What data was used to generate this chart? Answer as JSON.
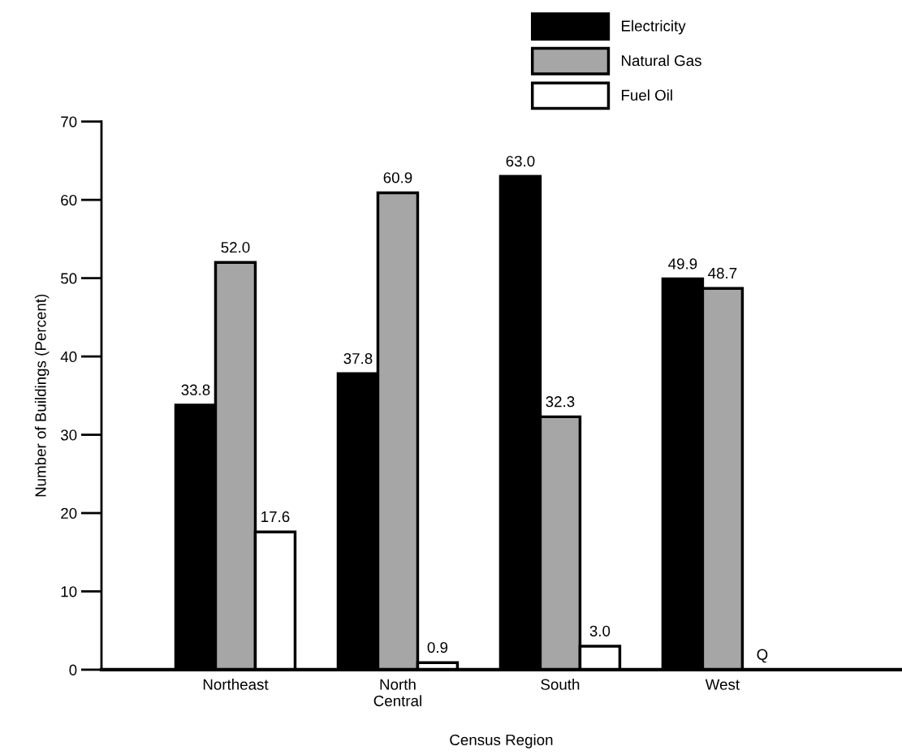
{
  "chart_data": {
    "type": "bar",
    "xlabel": "Census Region",
    "ylabel": "Number of Buildings (Percent)",
    "categories": [
      "Northeast",
      "North\nCentral",
      "South",
      "West"
    ],
    "series": [
      {
        "name": "Electricity",
        "color": "#000000",
        "values": [
          33.8,
          37.8,
          63.0,
          49.9
        ],
        "value_labels": [
          "33.8",
          "37.8",
          "63.0",
          "49.9"
        ]
      },
      {
        "name": "Natural Gas",
        "color": "#a6a6a6",
        "values": [
          52.0,
          60.9,
          32.3,
          48.7
        ],
        "value_labels": [
          "52.0",
          "60.9",
          "32.3",
          "48.7"
        ]
      },
      {
        "name": "Fuel Oil",
        "color": "#ffffff",
        "values": [
          17.6,
          0.9,
          3.0,
          null
        ],
        "value_labels": [
          "17.6",
          "0.9",
          "3.0",
          "Q"
        ]
      }
    ],
    "ylim": [
      0,
      70
    ],
    "yticks": [
      0,
      10,
      20,
      30,
      40,
      50,
      60,
      70
    ],
    "grid": false,
    "legend": "top right"
  }
}
